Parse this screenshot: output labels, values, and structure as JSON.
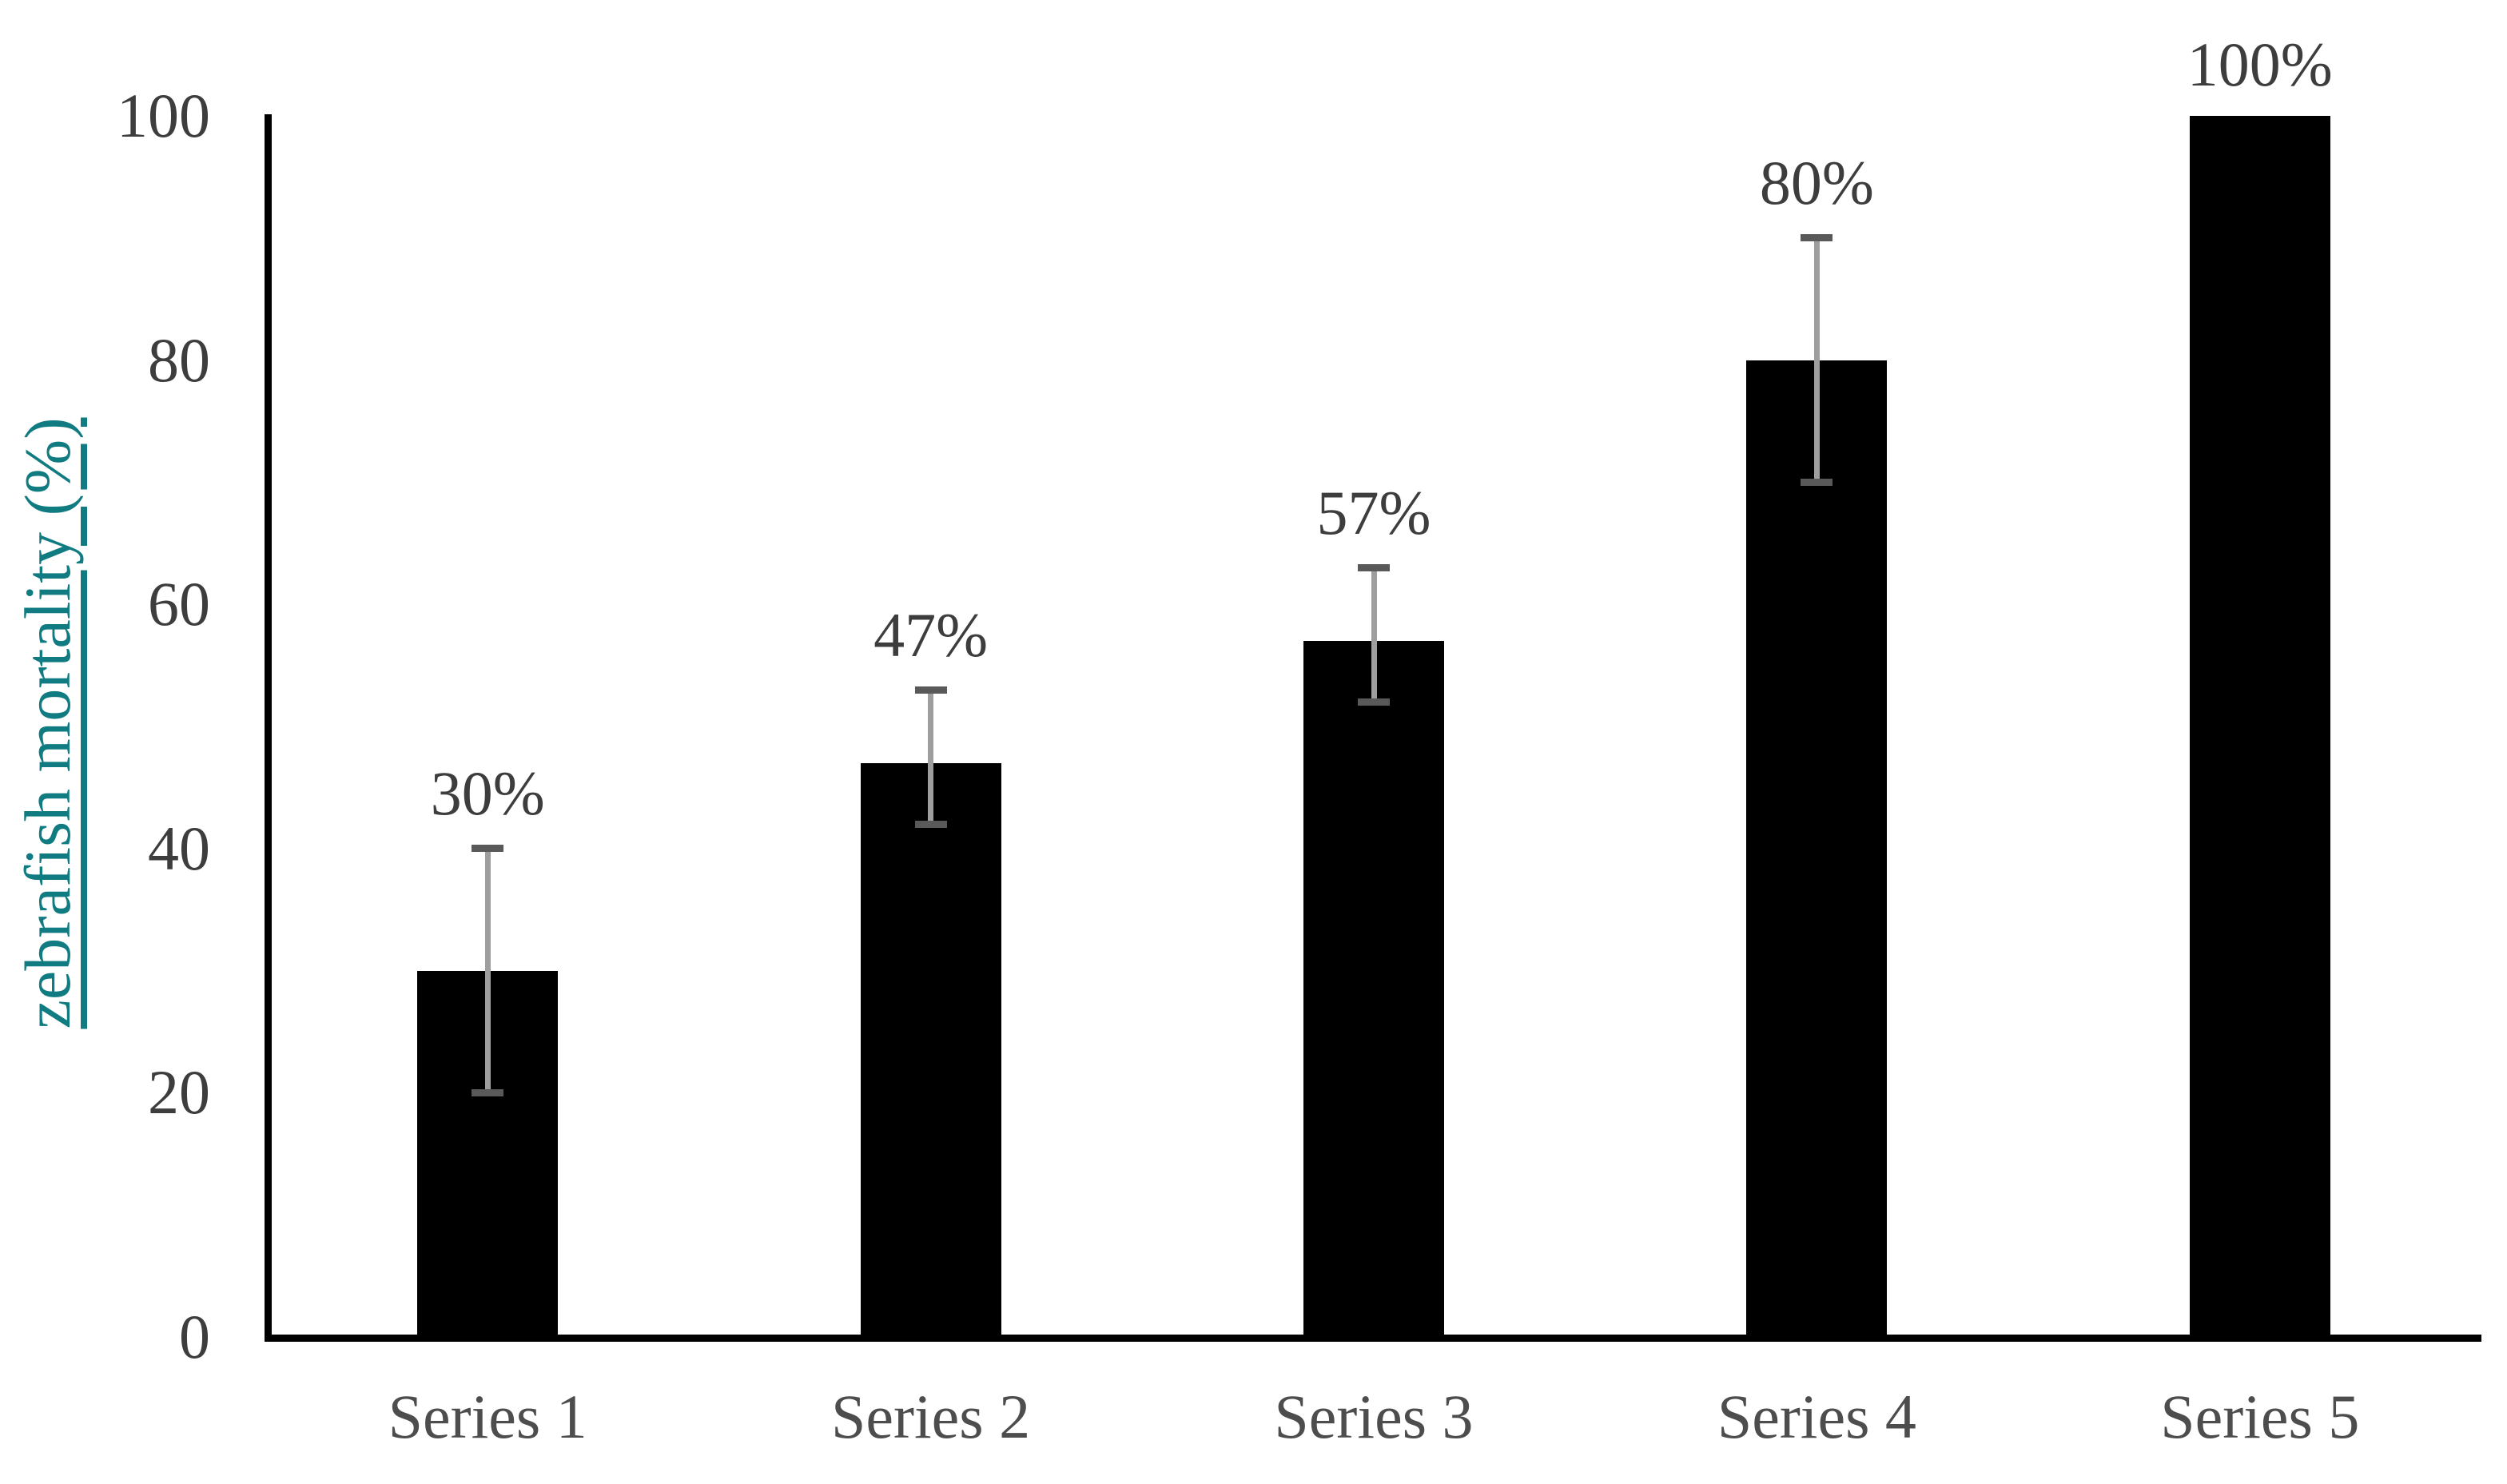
{
  "chart_data": {
    "type": "bar",
    "title": "",
    "xlabel": "",
    "ylabel": "zebrafish mortality (%)",
    "categories": [
      "Series 1",
      "Series 2",
      "Series 3",
      "Series 4",
      "Series 5"
    ],
    "values": [
      30,
      47,
      57,
      80,
      100
    ],
    "data_labels": [
      "30%",
      "47%",
      "57%",
      "80%",
      "100%"
    ],
    "error_low": [
      20,
      42,
      52,
      70,
      null
    ],
    "error_high": [
      40,
      53,
      63,
      90,
      null
    ],
    "ylim": [
      0,
      100
    ],
    "yticks": [
      0,
      20,
      40,
      60,
      80,
      100
    ],
    "grid": false,
    "legend_position": "none",
    "colors": {
      "bar": "#000000",
      "axis": "#000000",
      "tick_label": "#3d3d3d",
      "category_label": "#4d4d4d",
      "data_label": "#3d3d3d",
      "error_line": "#9e9e9e",
      "error_cap": "#595959",
      "ylabel": "#107c82",
      "background": "#ffffff"
    }
  }
}
